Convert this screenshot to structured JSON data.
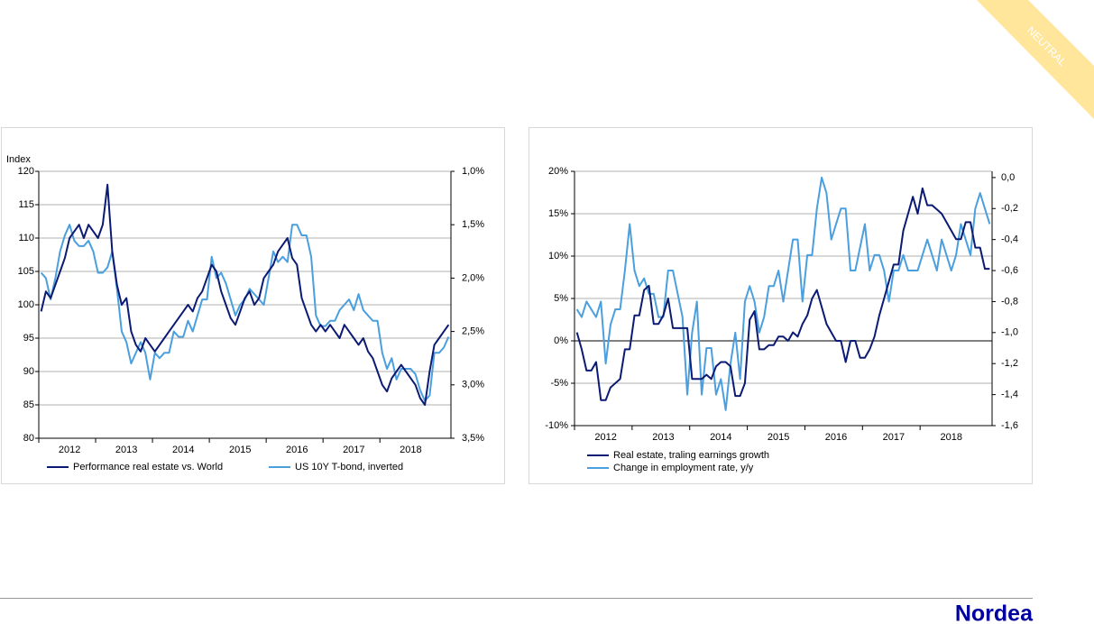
{
  "badge": "NEUTRAL",
  "logo": "Nordea",
  "chart_data": [
    {
      "type": "line",
      "ylabel": "Index",
      "categories": [
        null,
        null,
        null,
        null,
        null,
        null,
        "2012",
        null,
        null,
        null,
        null,
        null,
        null,
        null,
        null,
        null,
        null,
        null,
        "2013",
        null,
        null,
        null,
        null,
        null,
        null,
        null,
        null,
        null,
        null,
        null,
        "2014",
        null,
        null,
        null,
        null,
        null,
        null,
        null,
        null,
        null,
        null,
        null,
        "2015",
        null,
        null,
        null,
        null,
        null,
        null,
        null,
        null,
        null,
        null,
        null,
        "2016",
        null,
        null,
        null,
        null,
        null,
        null,
        null,
        null,
        null,
        null,
        null,
        "2017",
        null,
        null,
        null,
        null,
        null,
        null,
        null,
        null,
        null,
        null,
        null,
        "2018",
        null,
        null,
        null,
        null,
        null,
        null,
        null,
        null
      ],
      "series": [
        {
          "name": "Performance real estate vs. World",
          "color": "#0b1a73",
          "values": [
            99,
            102,
            101,
            103,
            105,
            107,
            110,
            111,
            112,
            110,
            112,
            111,
            110,
            112,
            118,
            108,
            103,
            100,
            101,
            96,
            94,
            93,
            95,
            94,
            93,
            94,
            95,
            96,
            97,
            98,
            99,
            100,
            99,
            101,
            102,
            104,
            106,
            105,
            102,
            100,
            98,
            97,
            99,
            101,
            102,
            100,
            101,
            104,
            105,
            106,
            108,
            109,
            110,
            107,
            106,
            101,
            99,
            97,
            96,
            97,
            96,
            97,
            96,
            95,
            97,
            96,
            95,
            94,
            95,
            93,
            92,
            90,
            88,
            87,
            89,
            90,
            91,
            90,
            89,
            88,
            86,
            85,
            90,
            94,
            95,
            96,
            97
          ]
        },
        {
          "name": "US 10Y T-bond, inverted",
          "color": "#4a9fdf",
          "axis": "y2",
          "values": [
            1.95,
            2.0,
            2.2,
            2.0,
            1.75,
            1.6,
            1.5,
            1.65,
            1.7,
            1.7,
            1.65,
            1.75,
            1.95,
            1.95,
            1.9,
            1.75,
            2.1,
            2.5,
            2.6,
            2.8,
            2.7,
            2.6,
            2.7,
            2.95,
            2.7,
            2.75,
            2.7,
            2.7,
            2.5,
            2.55,
            2.55,
            2.4,
            2.5,
            2.35,
            2.2,
            2.2,
            1.8,
            2.0,
            1.95,
            2.05,
            2.2,
            2.35,
            2.25,
            2.2,
            2.1,
            2.15,
            2.2,
            2.25,
            2.0,
            1.75,
            1.85,
            1.8,
            1.85,
            1.5,
            1.5,
            1.6,
            1.6,
            1.8,
            2.35,
            2.45,
            2.45,
            2.4,
            2.4,
            2.3,
            2.25,
            2.2,
            2.3,
            2.15,
            2.3,
            2.35,
            2.4,
            2.4,
            2.7,
            2.85,
            2.75,
            2.95,
            2.85,
            2.85,
            2.85,
            2.9,
            3.05,
            3.15,
            3.1,
            2.7,
            2.7,
            2.65,
            2.55
          ]
        }
      ],
      "ylim": [
        80,
        120
      ],
      "yticks": [
        80,
        85,
        90,
        95,
        100,
        105,
        110,
        115,
        120
      ],
      "y2lim": [
        3.5,
        1.0
      ],
      "y2ticks": [
        {
          "value": 1.0,
          "label": "1,0%"
        },
        {
          "value": 1.5,
          "label": "1,5%"
        },
        {
          "value": 2.0,
          "label": "2,0%"
        },
        {
          "value": 2.5,
          "label": "2,5%"
        },
        {
          "value": 3.0,
          "label": "3,0%"
        },
        {
          "value": 3.5,
          "label": "3,5%"
        }
      ],
      "grid": true,
      "legend": "bottom"
    },
    {
      "type": "line",
      "categories": [
        null,
        null,
        null,
        null,
        null,
        null,
        "2012",
        null,
        null,
        null,
        null,
        null,
        null,
        null,
        null,
        null,
        null,
        null,
        "2013",
        null,
        null,
        null,
        null,
        null,
        null,
        null,
        null,
        null,
        null,
        null,
        "2014",
        null,
        null,
        null,
        null,
        null,
        null,
        null,
        null,
        null,
        null,
        null,
        "2015",
        null,
        null,
        null,
        null,
        null,
        null,
        null,
        null,
        null,
        null,
        null,
        "2016",
        null,
        null,
        null,
        null,
        null,
        null,
        null,
        null,
        null,
        null,
        null,
        "2017",
        null,
        null,
        null,
        null,
        null,
        null,
        null,
        null,
        null,
        null,
        null,
        "2018",
        null,
        null,
        null,
        null,
        null,
        null,
        null,
        null
      ],
      "series": [
        {
          "name": "Real estate, traling earnings growth",
          "color": "#0b1a73",
          "values": [
            1,
            -1,
            -3.5,
            -3.5,
            -2.5,
            -7,
            -7,
            -5.5,
            -5,
            -4.5,
            -1,
            -1,
            3,
            3,
            6,
            6.5,
            2,
            2,
            3,
            5,
            1.5,
            1.5,
            1.5,
            1.5,
            -4.5,
            -4.5,
            -4.5,
            -4,
            -4.5,
            -3,
            -2.5,
            -2.5,
            -3,
            -6.5,
            -6.5,
            -5,
            2.5,
            3.5,
            -1,
            -1,
            -0.5,
            -0.5,
            0.5,
            0.5,
            0,
            1,
            0.5,
            2,
            3,
            5,
            6,
            4,
            2,
            1,
            0,
            0,
            -2.5,
            0,
            0,
            -2,
            -2,
            -1,
            0.5,
            3,
            5,
            7,
            9,
            9,
            13,
            15,
            17,
            15,
            18,
            16,
            16,
            15.5,
            15,
            14,
            13,
            12,
            12,
            14,
            14,
            11,
            11,
            8.5,
            8.5
          ]
        },
        {
          "name": "Change in employment rate, y/y",
          "color": "#4a9fdf",
          "axis": "y2",
          "values": [
            -0.85,
            -0.9,
            -0.8,
            -0.85,
            -0.9,
            -0.8,
            -1.2,
            -0.95,
            -0.85,
            -0.85,
            -0.6,
            -0.3,
            -0.6,
            -0.7,
            -0.65,
            -0.75,
            -0.75,
            -0.9,
            -0.9,
            -0.6,
            -0.6,
            -0.75,
            -0.9,
            -1.4,
            -1.0,
            -0.8,
            -1.4,
            -1.1,
            -1.1,
            -1.4,
            -1.3,
            -1.5,
            -1.2,
            -1.0,
            -1.3,
            -0.8,
            -0.7,
            -0.8,
            -1.0,
            -0.9,
            -0.7,
            -0.7,
            -0.6,
            -0.8,
            -0.6,
            -0.4,
            -0.4,
            -0.8,
            -0.5,
            -0.5,
            -0.2,
            0.0,
            -0.1,
            -0.4,
            -0.3,
            -0.2,
            -0.2,
            -0.6,
            -0.6,
            -0.45,
            -0.3,
            -0.6,
            -0.5,
            -0.5,
            -0.6,
            -0.8,
            -0.6,
            -0.6,
            -0.5,
            -0.6,
            -0.6,
            -0.6,
            -0.5,
            -0.4,
            -0.5,
            -0.6,
            -0.4,
            -0.5,
            -0.6,
            -0.5,
            -0.3,
            -0.4,
            -0.5,
            -0.2,
            -0.1,
            -0.2,
            -0.3
          ]
        }
      ],
      "ylim": [
        -10,
        20
      ],
      "yticks": [
        {
          "value": -10,
          "label": "-10%"
        },
        {
          "value": -5,
          "label": "-5%"
        },
        {
          "value": 0,
          "label": "0%"
        },
        {
          "value": 5,
          "label": "5%"
        },
        {
          "value": 10,
          "label": "10%"
        },
        {
          "value": 15,
          "label": "15%"
        },
        {
          "value": 20,
          "label": "20%"
        }
      ],
      "y2lim": [
        -1.6,
        0.04
      ],
      "y2ticks": [
        {
          "value": -1.6,
          "label": "-1,6"
        },
        {
          "value": -1.4,
          "label": "-1,4"
        },
        {
          "value": -1.2,
          "label": "-1,2"
        },
        {
          "value": -1.0,
          "label": "-1,0"
        },
        {
          "value": -0.8,
          "label": "-0,8"
        },
        {
          "value": -0.6,
          "label": "-0,6"
        },
        {
          "value": -0.4,
          "label": "-0,4"
        },
        {
          "value": -0.2,
          "label": "-0,2"
        },
        {
          "value": 0.0,
          "label": "0,0"
        }
      ],
      "grid": true,
      "zero_line": true,
      "legend": "bottom"
    }
  ]
}
